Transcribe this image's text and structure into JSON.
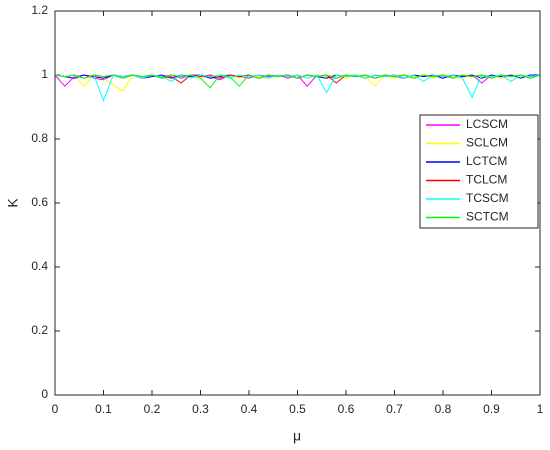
{
  "chart_data": {
    "type": "line",
    "x_label": "μ",
    "y_label": "K",
    "x": [
      0,
      0.02,
      0.04,
      0.06,
      0.08,
      0.1,
      0.12,
      0.14,
      0.16,
      0.18,
      0.2,
      0.22,
      0.24,
      0.26,
      0.28,
      0.3,
      0.32,
      0.34,
      0.36,
      0.38,
      0.4,
      0.42,
      0.44,
      0.46,
      0.48,
      0.5,
      0.52,
      0.54,
      0.56,
      0.58,
      0.6,
      0.62,
      0.64,
      0.66,
      0.68,
      0.7,
      0.72,
      0.74,
      0.76,
      0.78,
      0.8,
      0.82,
      0.84,
      0.86,
      0.88,
      0.9,
      0.92,
      0.94,
      0.96,
      0.98,
      1
    ],
    "series": [
      {
        "name": "LCSCM",
        "color": "#ff00ff",
        "values": [
          1,
          0.965,
          0.995,
          1,
          0.99,
          0.985,
          1,
          0.995,
          1,
          0.99,
          1,
          0.995,
          1,
          0.99,
          1,
          1,
          0.995,
          0.985,
          1,
          0.995,
          0.99,
          1,
          0.995,
          1,
          0.99,
          1,
          0.965,
          1,
          0.995,
          0.99,
          1,
          0.995,
          1,
          0.99,
          1,
          0.995,
          0.99,
          1,
          0.995,
          1,
          0.99,
          1,
          0.995,
          1,
          0.975,
          1,
          0.99,
          1,
          0.995,
          1,
          1
        ]
      },
      {
        "name": "SCLCM",
        "color": "#ffff00",
        "values": [
          1,
          0.995,
          1,
          0.965,
          1,
          0.99,
          0.97,
          0.95,
          1,
          0.995,
          1,
          0.99,
          1,
          0.995,
          1,
          0.99,
          1,
          0.995,
          1,
          0.99,
          1,
          0.995,
          0.99,
          1,
          0.995,
          1,
          0.99,
          1,
          0.995,
          1,
          0.99,
          1,
          0.995,
          0.965,
          1,
          0.99,
          1,
          0.995,
          1,
          0.99,
          1,
          0.995,
          0.99,
          1,
          0.995,
          1,
          0.99,
          1,
          0.995,
          1,
          1
        ]
      },
      {
        "name": "LCTCM",
        "color": "#0000ff",
        "values": [
          1,
          0.995,
          0.99,
          1,
          0.995,
          0.99,
          1,
          0.995,
          1,
          0.99,
          0.995,
          1,
          0.99,
          1,
          0.995,
          1,
          0.99,
          0.995,
          1,
          0.995,
          1,
          0.99,
          1,
          0.995,
          1,
          0.99,
          1,
          0.995,
          0.99,
          1,
          0.995,
          1,
          0.99,
          1,
          0.995,
          1,
          0.99,
          1,
          0.995,
          1,
          0.99,
          1,
          0.995,
          1,
          0.99,
          1,
          0.995,
          1,
          0.99,
          1,
          1
        ]
      },
      {
        "name": "TCLCM",
        "color": "#ff0000",
        "values": [
          1,
          0.995,
          1,
          0.99,
          1,
          0.995,
          1,
          0.99,
          1,
          0.995,
          1,
          0.99,
          0.995,
          0.975,
          1,
          0.995,
          1,
          0.99,
          1,
          0.995,
          1,
          0.99,
          1,
          0.995,
          1,
          0.99,
          1,
          0.995,
          1,
          0.975,
          1,
          0.995,
          1,
          0.99,
          1,
          0.995,
          1,
          0.99,
          1,
          0.995,
          1,
          0.99,
          1,
          0.995,
          1,
          0.99,
          1,
          0.995,
          1,
          0.99,
          1
        ]
      },
      {
        "name": "TCSCM",
        "color": "#00ffff",
        "values": [
          1,
          0.995,
          1,
          0.99,
          1,
          0.92,
          1,
          0.995,
          1,
          0.99,
          1,
          0.995,
          0.98,
          1,
          0.99,
          1,
          0.995,
          1,
          0.99,
          1,
          0.995,
          1,
          0.99,
          1,
          0.995,
          1,
          0.99,
          1,
          0.945,
          1,
          0.995,
          1,
          0.99,
          1,
          0.995,
          1,
          0.99,
          1,
          0.98,
          1,
          0.995,
          1,
          0.99,
          0.93,
          1,
          0.995,
          1,
          0.98,
          1,
          0.995,
          1
        ]
      },
      {
        "name": "SCTCM",
        "color": "#00ff00",
        "values": [
          1,
          0.995,
          1,
          0.99,
          1,
          0.995,
          1,
          0.99,
          1,
          0.995,
          1,
          0.99,
          1,
          0.995,
          1,
          0.99,
          0.96,
          1,
          0.995,
          0.965,
          1,
          0.99,
          1,
          0.995,
          1,
          0.99,
          1,
          0.995,
          1,
          0.99,
          1,
          0.995,
          1,
          0.99,
          1,
          0.995,
          1,
          0.99,
          1,
          0.995,
          1,
          0.99,
          1,
          0.995,
          1,
          0.99,
          1,
          0.995,
          1,
          0.99,
          1
        ]
      }
    ],
    "xlim": [
      0,
      1
    ],
    "xticks": [
      0,
      0.1,
      0.2,
      0.3,
      0.4,
      0.5,
      0.6,
      0.7,
      0.8,
      0.9,
      1
    ],
    "ylim": [
      0,
      1.2
    ],
    "yticks": [
      0,
      0.2,
      0.4,
      0.6,
      0.8,
      1,
      1.2
    ],
    "grid": false,
    "legend_position": "east"
  }
}
